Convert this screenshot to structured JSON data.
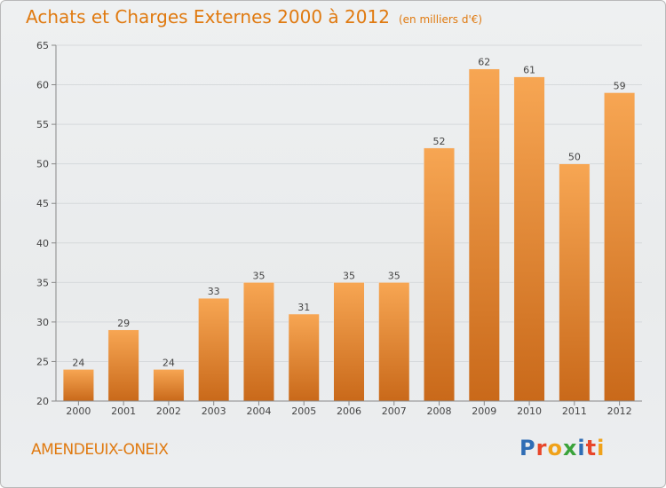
{
  "header": {
    "title": "Achats et Charges Externes 2000 à 2012",
    "unit": "(en milliers d'€)"
  },
  "footer": {
    "commune": "AMENDEUIX-ONEIX",
    "logo_text": "Proxiti",
    "logo_colors": [
      "#2f6db5",
      "#e8462a",
      "#f0a21a",
      "#3aa33a",
      "#2f6db5",
      "#e8462a",
      "#f0a21a"
    ]
  },
  "colors": {
    "bar_light": "#f7a653",
    "bar_dark": "#c9691a",
    "text_accent": "#e07a10",
    "grid": "#d6d9dc",
    "axis": "#888888"
  },
  "chart_data": {
    "type": "bar",
    "title": "Achats et Charges Externes 2000 à 2012",
    "subtitle": "(en milliers d'€)",
    "xlabel": "",
    "ylabel": "",
    "categories": [
      "2000",
      "2001",
      "2002",
      "2003",
      "2004",
      "2005",
      "2006",
      "2007",
      "2008",
      "2009",
      "2010",
      "2011",
      "2012"
    ],
    "values": [
      24,
      29,
      24,
      33,
      35,
      31,
      35,
      35,
      52,
      62,
      61,
      50,
      59
    ],
    "ylim": [
      20,
      65
    ],
    "yticks": [
      20,
      25,
      30,
      35,
      40,
      45,
      50,
      55,
      60,
      65
    ],
    "grid": true,
    "legend": "none"
  }
}
